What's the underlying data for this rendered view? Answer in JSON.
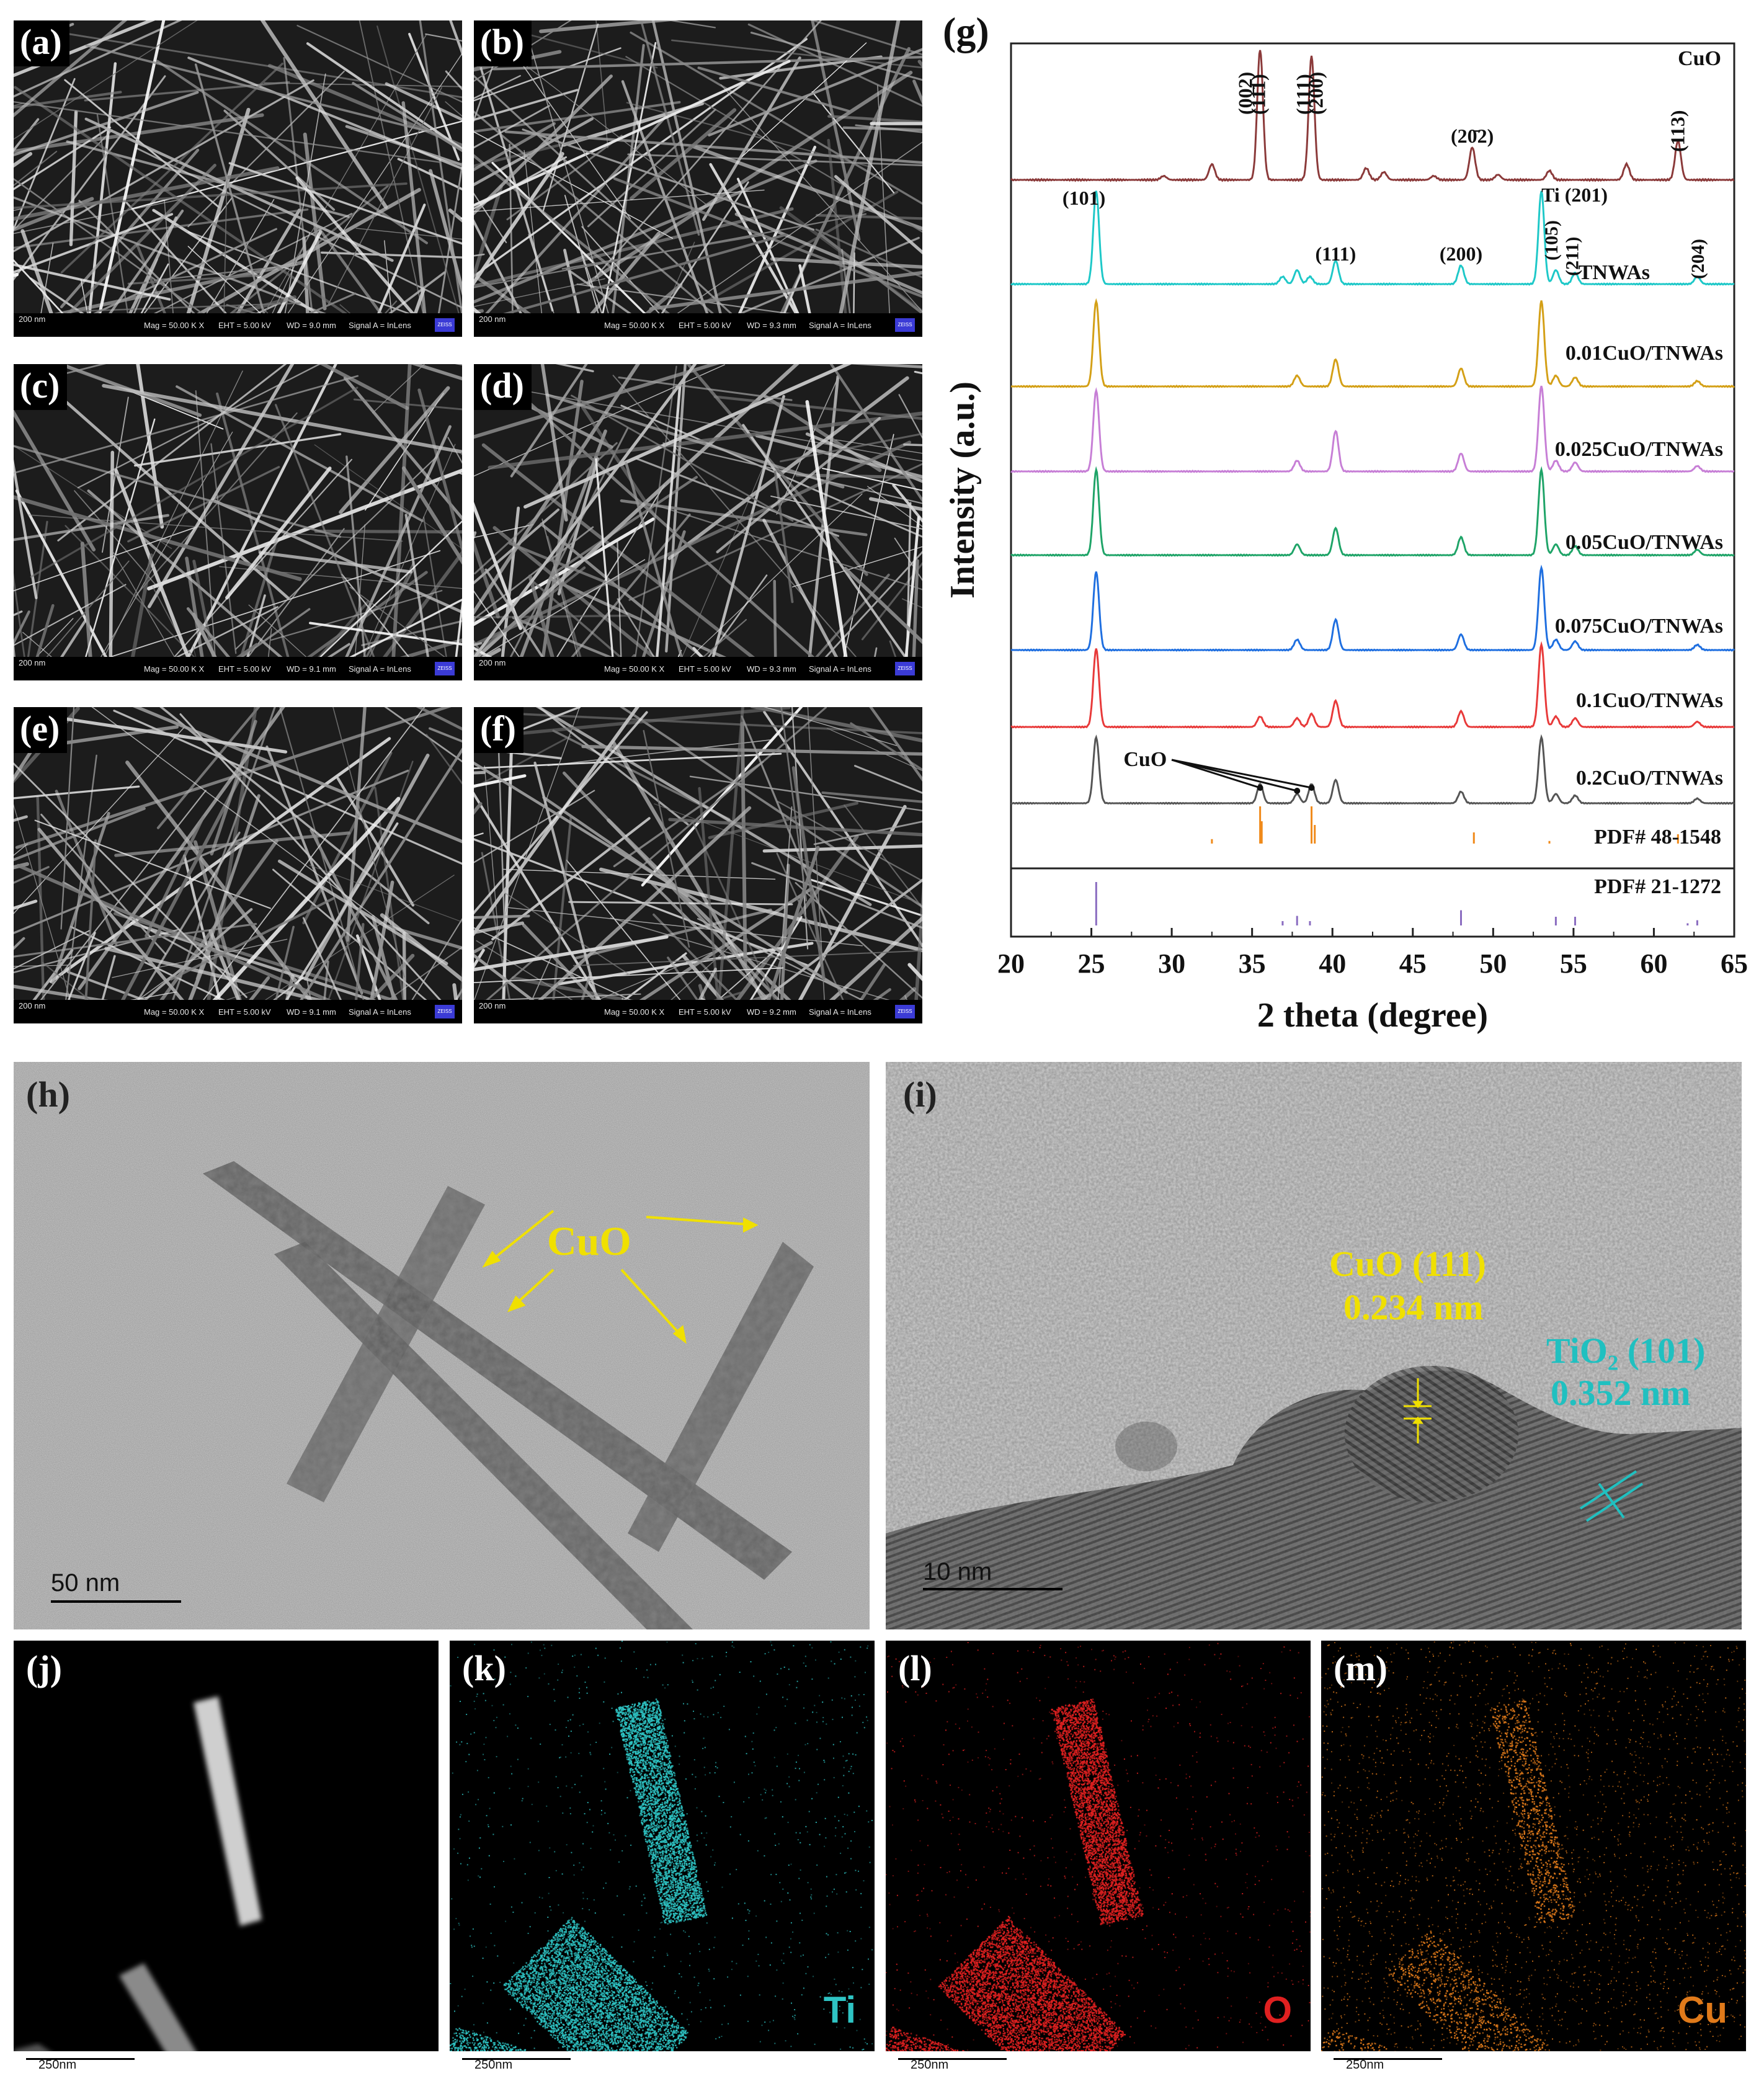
{
  "sem": {
    "panels": [
      {
        "label": "(a)",
        "scale": "200 nm",
        "mag": "Mag =  50.00 K X",
        "eht": "EHT =  5.00 kV",
        "wd": "WD =  9.0 mm",
        "signal": "Signal A = InLens"
      },
      {
        "label": "(b)",
        "scale": "200 nm",
        "mag": "Mag =  50.00 K X",
        "eht": "EHT =  5.00 kV",
        "wd": "WD =  9.3 mm",
        "signal": "Signal A = InLens"
      },
      {
        "label": "(c)",
        "scale": "200 nm",
        "mag": "Mag =  50.00 K X",
        "eht": "EHT =  5.00 kV",
        "wd": "WD =  9.1 mm",
        "signal": "Signal A = InLens"
      },
      {
        "label": "(d)",
        "scale": "200 nm",
        "mag": "Mag =  50.00 K X",
        "eht": "EHT =  5.00 kV",
        "wd": "WD =  9.3 mm",
        "signal": "Signal A = InLens"
      },
      {
        "label": "(e)",
        "scale": "200 nm",
        "mag": "Mag =  50.00 K X",
        "eht": "EHT =  5.00 kV",
        "wd": "WD =  9.1 mm",
        "signal": "Signal A = InLens"
      },
      {
        "label": "(f)",
        "scale": "200 nm",
        "mag": "Mag =  50.00 K X",
        "eht": "EHT =  5.00 kV",
        "wd": "WD =  9.2 mm",
        "signal": "Signal A = InLens"
      }
    ],
    "logo_text": "ZEISS"
  },
  "xrd": {
    "label": "(g)",
    "xlabel": "2 theta (degree)",
    "ylabel": "Intensity (a.u.)",
    "xticks": [
      "20",
      "25",
      "30",
      "35",
      "40",
      "45",
      "50",
      "55",
      "60",
      "65"
    ],
    "cuo_arrow_label": "CuO",
    "peak_labels": {
      "cuo_002": "(002)",
      "cuo_111bar": "(11̄1)",
      "cuo_111": "(111)",
      "cuo_200": "(200)",
      "cuo_202bar": "(20̄2)",
      "cuo_113": "(113)",
      "tio2_101": "(101)",
      "tio2_111": "(111)",
      "tio2_200": "(200)",
      "ti_201": "Ti (201)",
      "tio2_105": "(105)",
      "tio2_211": "(211)",
      "tio2_204": "(204)"
    },
    "pdf_cuo": "PDF# 48-1548",
    "pdf_tio2": "PDF# 21-1272"
  },
  "chart_data": {
    "type": "line",
    "title": "",
    "xlabel": "2 theta (degree)",
    "ylabel": "Intensity (a.u.)",
    "xlim": [
      20,
      65
    ],
    "grid": false,
    "series": [
      {
        "name": "CuO",
        "color": "#8b3a3a",
        "peaks": [
          [
            29.5,
            0.03
          ],
          [
            32.5,
            0.12
          ],
          [
            35.5,
            1.0
          ],
          [
            38.7,
            0.95
          ],
          [
            42.1,
            0.09
          ],
          [
            43.2,
            0.06
          ],
          [
            46.3,
            0.03
          ],
          [
            48.7,
            0.25
          ],
          [
            50.3,
            0.04
          ],
          [
            53.5,
            0.07
          ],
          [
            58.3,
            0.12
          ],
          [
            61.5,
            0.3
          ],
          [
            66.2,
            0.05
          ]
        ]
      },
      {
        "name": "TNWAs",
        "color": "#1ec8c8",
        "peaks": [
          [
            25.3,
            1.0
          ],
          [
            36.9,
            0.08
          ],
          [
            37.8,
            0.15
          ],
          [
            38.6,
            0.08
          ],
          [
            40.2,
            0.25
          ],
          [
            48.0,
            0.2
          ],
          [
            53.0,
            1.0
          ],
          [
            53.9,
            0.15
          ],
          [
            55.1,
            0.12
          ],
          [
            62.7,
            0.08
          ]
        ]
      },
      {
        "name": "0.01CuO/TNWAs",
        "color": "#d4a017",
        "peaks": [
          [
            25.3,
            0.95
          ],
          [
            37.8,
            0.12
          ],
          [
            40.2,
            0.3
          ],
          [
            48.0,
            0.2
          ],
          [
            53.0,
            0.95
          ],
          [
            53.9,
            0.12
          ],
          [
            55.1,
            0.1
          ],
          [
            62.7,
            0.06
          ]
        ]
      },
      {
        "name": "0.025CuO/TNWAs",
        "color": "#c77fd6",
        "peaks": [
          [
            25.3,
            0.9
          ],
          [
            37.8,
            0.12
          ],
          [
            40.2,
            0.45
          ],
          [
            48.0,
            0.2
          ],
          [
            53.0,
            0.95
          ],
          [
            53.9,
            0.12
          ],
          [
            55.1,
            0.1
          ],
          [
            62.7,
            0.06
          ]
        ]
      },
      {
        "name": "0.05CuO/TNWAs",
        "color": "#1fa468",
        "peaks": [
          [
            25.3,
            0.95
          ],
          [
            37.8,
            0.12
          ],
          [
            40.2,
            0.3
          ],
          [
            48.0,
            0.2
          ],
          [
            53.0,
            0.95
          ],
          [
            53.9,
            0.12
          ],
          [
            55.1,
            0.1
          ],
          [
            62.7,
            0.06
          ]
        ]
      },
      {
        "name": "0.075CuO/TNWAs",
        "color": "#1f6fe0",
        "peaks": [
          [
            25.3,
            0.9
          ],
          [
            37.8,
            0.12
          ],
          [
            40.2,
            0.35
          ],
          [
            48.0,
            0.18
          ],
          [
            53.0,
            0.95
          ],
          [
            53.9,
            0.12
          ],
          [
            55.1,
            0.1
          ],
          [
            62.7,
            0.06
          ]
        ]
      },
      {
        "name": "0.1CuO/TNWAs",
        "color": "#e83a3a",
        "peaks": [
          [
            25.3,
            0.9
          ],
          [
            35.5,
            0.12
          ],
          [
            37.8,
            0.1
          ],
          [
            38.7,
            0.15
          ],
          [
            40.2,
            0.3
          ],
          [
            48.0,
            0.18
          ],
          [
            53.0,
            0.95
          ],
          [
            53.9,
            0.12
          ],
          [
            55.1,
            0.1
          ],
          [
            62.7,
            0.06
          ]
        ]
      },
      {
        "name": "0.2CuO/TNWAs",
        "color": "#555555",
        "peaks": [
          [
            25.3,
            0.85
          ],
          [
            35.5,
            0.25
          ],
          [
            37.8,
            0.12
          ],
          [
            38.7,
            0.25
          ],
          [
            40.2,
            0.3
          ],
          [
            48.0,
            0.15
          ],
          [
            53.0,
            0.85
          ],
          [
            53.9,
            0.12
          ],
          [
            55.1,
            0.1
          ],
          [
            62.7,
            0.06
          ]
        ]
      }
    ],
    "reference": {
      "pdf_48_1548": {
        "color": "#f08a1a",
        "lines": [
          [
            32.5,
            0.12
          ],
          [
            35.5,
            1.0
          ],
          [
            35.6,
            0.6
          ],
          [
            38.7,
            1.0
          ],
          [
            38.9,
            0.5
          ],
          [
            48.8,
            0.3
          ],
          [
            53.5,
            0.07
          ],
          [
            58.3,
            0.1
          ],
          [
            61.5,
            0.25
          ]
        ]
      },
      "pdf_21_1272": {
        "color": "#8a6cc0",
        "lines": [
          [
            25.3,
            1.0
          ],
          [
            36.9,
            0.1
          ],
          [
            37.8,
            0.22
          ],
          [
            38.6,
            0.1
          ],
          [
            48.0,
            0.35
          ],
          [
            53.9,
            0.2
          ],
          [
            55.1,
            0.2
          ],
          [
            62.1,
            0.05
          ],
          [
            62.7,
            0.12
          ]
        ]
      }
    }
  },
  "tem_h": {
    "label": "(h)",
    "annotation": "CuO",
    "scale": "50 nm"
  },
  "tem_i": {
    "label": "(i)",
    "cuo_line1": "CuO (111)",
    "cuo_line2": "0.234 nm",
    "tio2_line1": "TiO₂ (101)",
    "tio2_line2": "0.352 nm",
    "scale": "10 nm"
  },
  "eds": {
    "j": {
      "label": "(j)",
      "scale": "250nm"
    },
    "k": {
      "label": "(k)",
      "element": "Ti",
      "scale": "250nm",
      "color": "#2ec4c4"
    },
    "l": {
      "label": "(l)",
      "element": "O",
      "scale": "250nm",
      "color": "#e02020"
    },
    "m": {
      "label": "(m)",
      "element": "Cu",
      "scale": "250nm",
      "color": "#e07a1a"
    }
  }
}
